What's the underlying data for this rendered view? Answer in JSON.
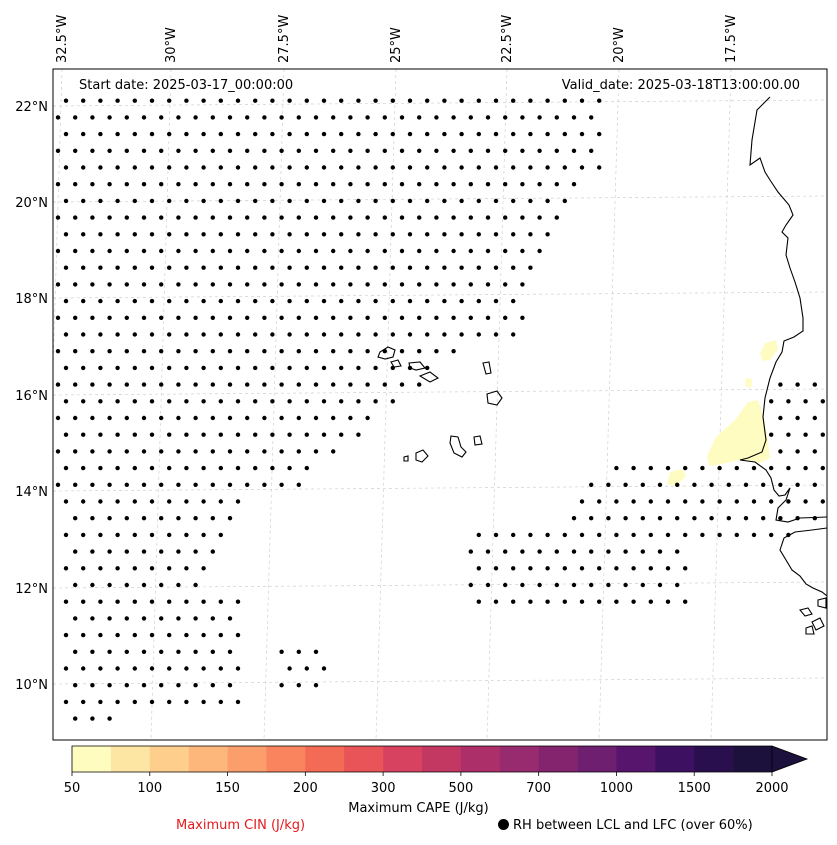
{
  "header": {
    "start_date": "Start date: 2025-03-17_00:00:00",
    "valid_date": "Valid_date: 2025-03-18T13:00:00.00"
  },
  "map": {
    "lon_labels": [
      "32.5°W",
      "30°W",
      "27.5°W",
      "25°W",
      "22.5°W",
      "20°W",
      "17.5°W"
    ],
    "lat_labels": [
      "22°N",
      "20°N",
      "18°N",
      "16°N",
      "14°N",
      "12°N",
      "10°N"
    ],
    "gridlines": "dashed light grey",
    "cape_fill_color": "#fffcbf",
    "rh_marker_color": "#000000",
    "coastline_color": "#000000"
  },
  "colorbar": {
    "title": "Maximum CAPE (J/kg)",
    "tick_labels": [
      "50",
      "100",
      "150",
      "200",
      "300",
      "500",
      "700",
      "1000",
      "1500",
      "2000"
    ],
    "colors": [
      "#fffcbf",
      "#fde5a4",
      "#fecf8c",
      "#feb77b",
      "#fc9e6c",
      "#f9845d",
      "#f36a55",
      "#e85457",
      "#d6425f",
      "#c33763",
      "#ad2f6a",
      "#982a6f",
      "#84246f",
      "#6e1f70",
      "#58156d",
      "#3e1062",
      "#2a0f4f",
      "#1c103d"
    ],
    "extend": "max"
  },
  "legend": {
    "cin_label": "Maximum CIN (J/kg)",
    "cin_color": "#e41a1c",
    "rh_label": "RH between LCL and LFC (over 60%)"
  }
}
